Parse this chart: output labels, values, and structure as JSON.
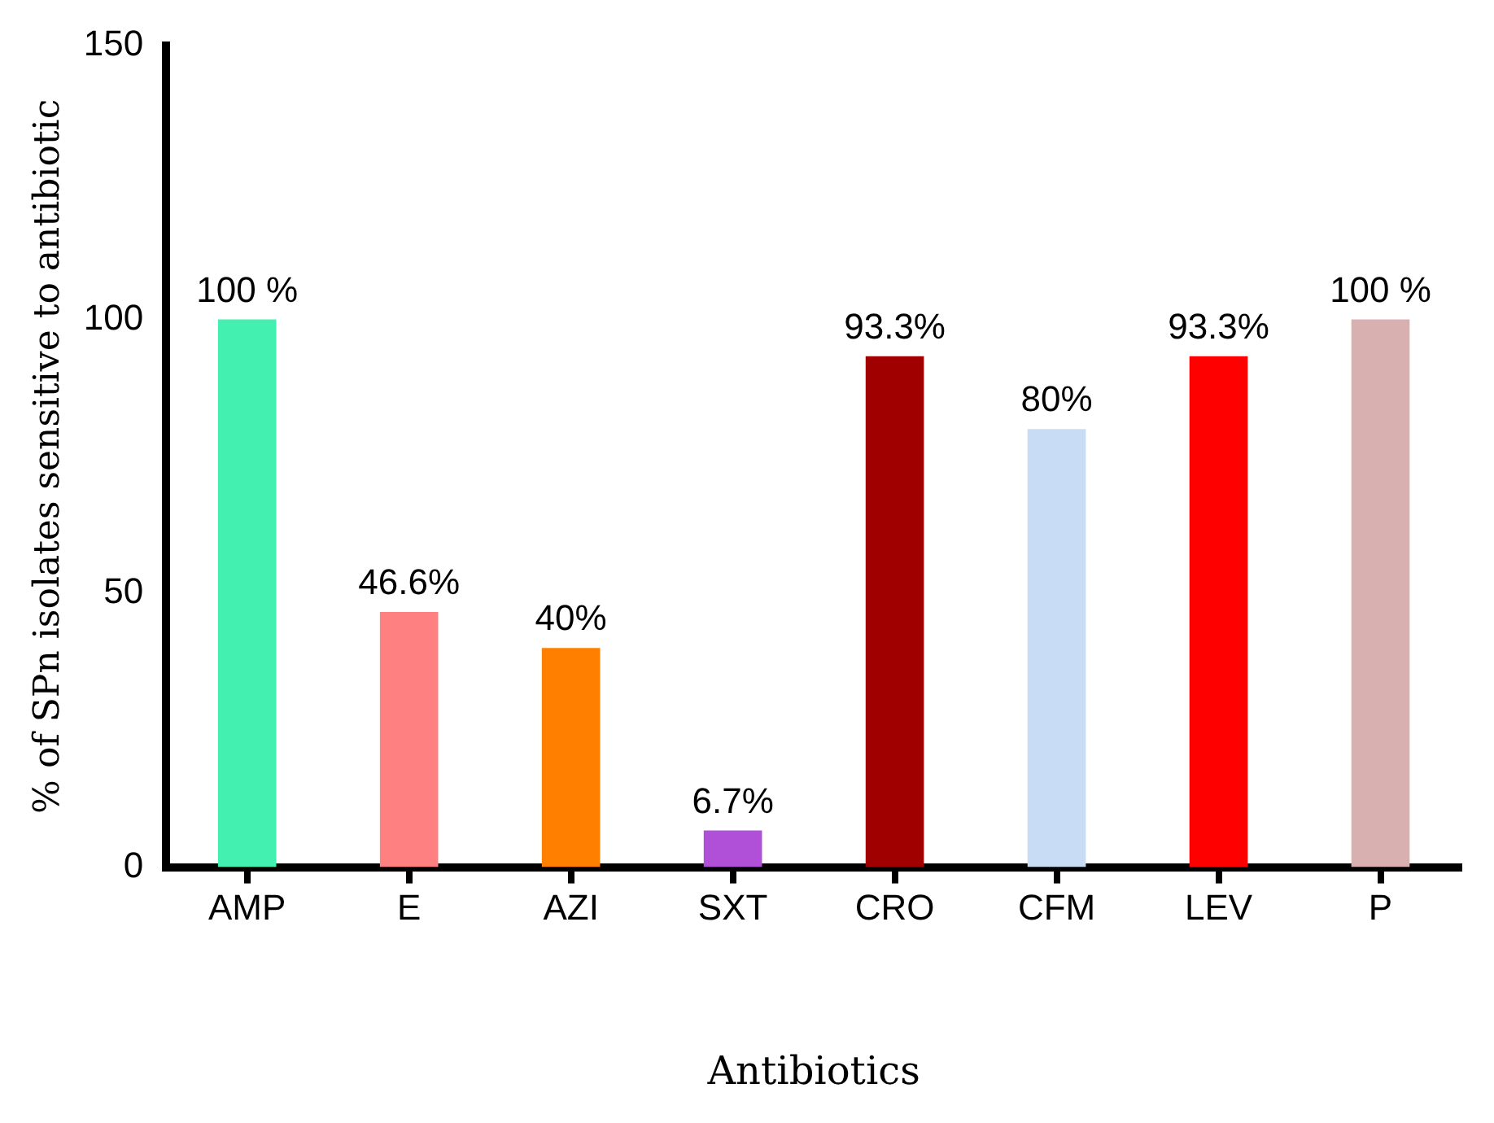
{
  "chart_data": {
    "type": "bar",
    "xlabel": "Antibiotics",
    "ylabel": "% of SPn isolates sensitive to antibiotic",
    "categories": [
      "AMP",
      "E",
      "AZI",
      "SXT",
      "CRO",
      "CFM",
      "LEV",
      "P"
    ],
    "values": [
      100,
      46.6,
      40,
      6.7,
      93.3,
      80,
      93.3,
      100
    ],
    "colors": [
      "#44f0b0",
      "#ff8080",
      "#ff8000",
      "#b050d8",
      "#a00000",
      "#c8dcf5",
      "#ff0000",
      "#d8b0b0"
    ],
    "value_labels": [
      "100 %",
      "46.6%",
      "40%",
      "6.7%",
      "93.3%",
      "80%",
      "93.3%",
      "100 %"
    ],
    "ylim": [
      0,
      150
    ],
    "yticks": [
      0,
      50,
      100,
      150
    ],
    "grid": false,
    "legend": false
  }
}
